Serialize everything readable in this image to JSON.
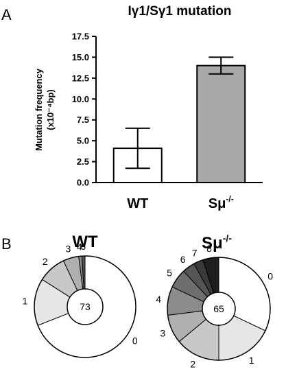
{
  "panel_a": {
    "letter": "A"
  },
  "panel_b": {
    "letter": "B"
  },
  "chart_data": [
    {
      "type": "bar",
      "title": "Iγ1/Sγ1 mutation",
      "ylabel_line1": "Mutation frequency",
      "ylabel_line2": "(x10⁻⁴bp)",
      "categories": [
        "WT",
        "Sμ"
      ],
      "category_superscripts": [
        "",
        "-/-"
      ],
      "values": [
        4.1,
        14.0
      ],
      "error": [
        2.4,
        1.0
      ],
      "bar_colors": [
        "#ffffff",
        "#a8a8a8"
      ],
      "ylim": [
        0,
        17.5
      ],
      "yticks": [
        "0.0",
        "2.5",
        "5.0",
        "7.5",
        "10.0",
        "12.5",
        "15.0",
        "17.5"
      ],
      "grid": false
    },
    {
      "type": "pie",
      "title": "WT",
      "center_label": "73",
      "labels": [
        "0",
        "1",
        "2",
        "3",
        "4",
        "6"
      ],
      "values": [
        69,
        15,
        9,
        5,
        1,
        1
      ],
      "colors": [
        "#ffffff",
        "#e6e6e6",
        "#c8c8c8",
        "#b0b0b0",
        "#8c8c8c",
        "#555555"
      ]
    },
    {
      "type": "pie",
      "title": "Sμ",
      "title_superscript": "-/-",
      "center_label": "65",
      "labels": [
        "0",
        "1",
        "2",
        "3",
        "4",
        "5",
        "6",
        "7",
        "8"
      ],
      "values": [
        32,
        18,
        14,
        9,
        9,
        6,
        4,
        3,
        5
      ],
      "colors": [
        "#ffffff",
        "#e6e6e6",
        "#c8c8c8",
        "#b0b0b0",
        "#8c8c8c",
        "#6e6e6e",
        "#555555",
        "#3a3a3a",
        "#1e1e1e"
      ]
    }
  ]
}
